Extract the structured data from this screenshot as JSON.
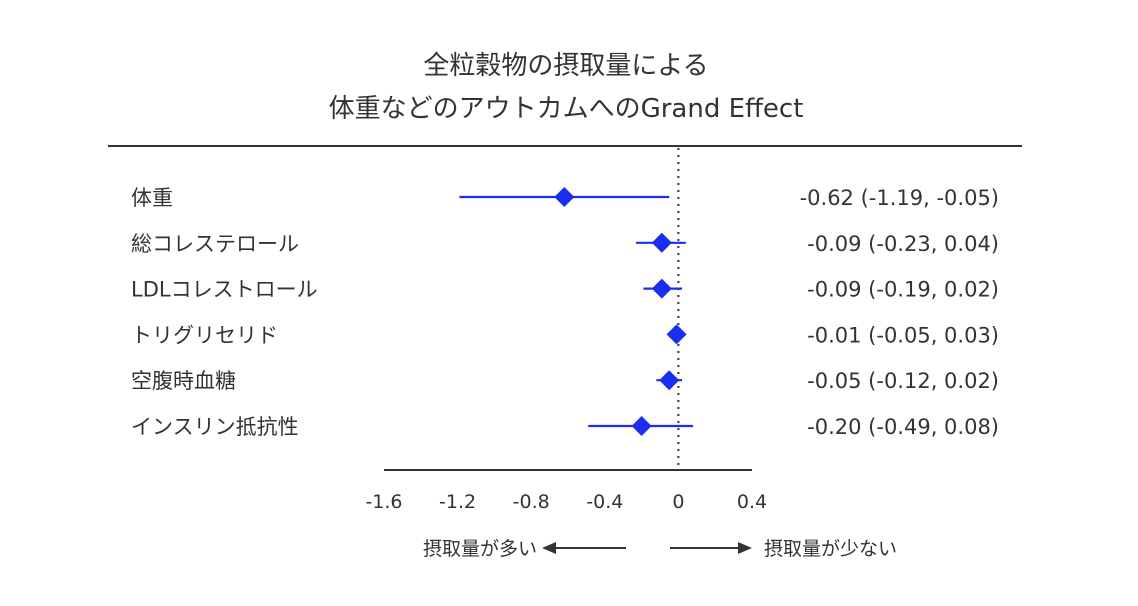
{
  "chart_data": {
    "type": "forest",
    "title_line1": "全粒穀物の摂取量による",
    "title_line2": "体重などのアウトカムへのGrand Effect",
    "xlim": [
      -1.6,
      0.4
    ],
    "ticks": [
      -1.6,
      -1.2,
      -0.8,
      -0.4,
      0,
      0.4
    ],
    "tick_labels": [
      "-1.6",
      "-1.2",
      "-0.8",
      "-0.4",
      "0",
      "0.4"
    ],
    "reference_line": 0,
    "marker_color": "#1a2ef0",
    "rows": [
      {
        "label": "体重",
        "estimate": -0.62,
        "lower": -1.19,
        "upper": -0.05,
        "ci_text": "-0.62 (-1.19, -0.05)"
      },
      {
        "label": "総コレステロール",
        "estimate": -0.09,
        "lower": -0.23,
        "upper": 0.04,
        "ci_text": "-0.09 (-0.23, 0.04)"
      },
      {
        "label": "LDLコレストロール",
        "estimate": -0.09,
        "lower": -0.19,
        "upper": 0.02,
        "ci_text": "-0.09 (-0.19, 0.02)"
      },
      {
        "label": "トリグリセリド",
        "estimate": -0.01,
        "lower": -0.05,
        "upper": 0.03,
        "ci_text": "-0.01 (-0.05, 0.03)"
      },
      {
        "label": "空腹時血糖",
        "estimate": -0.05,
        "lower": -0.12,
        "upper": 0.02,
        "ci_text": "-0.05 (-0.12, 0.02)"
      },
      {
        "label": "インスリン抵抗性",
        "estimate": -0.2,
        "lower": -0.49,
        "upper": 0.08,
        "ci_text": "-0.20 (-0.49, 0.08)"
      }
    ],
    "left_arrow_label": "摂取量が多い",
    "right_arrow_label": "摂取量が少ない"
  }
}
